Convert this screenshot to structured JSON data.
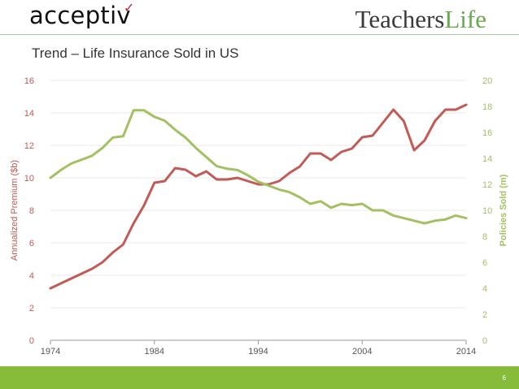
{
  "header": {
    "logo_left": "acceptiv",
    "logo_right_part1": "Teachers",
    "logo_right_part2": "Life",
    "title": "Trend – Life Insurance Sold in US"
  },
  "footer": {
    "page_number": "6"
  },
  "colors": {
    "premium": "#c25a55",
    "policies": "#a3c163",
    "footer": "#86bc3a",
    "grid": "#e8e8e8"
  },
  "chart_data": {
    "type": "line",
    "x_ticks": [
      1974,
      1984,
      1994,
      2004,
      2014
    ],
    "xlim": [
      1974,
      2014
    ],
    "y_left": {
      "label": "Annualized Premium ($b)",
      "ylim": [
        0,
        16
      ],
      "ticks": [
        0,
        2,
        4,
        6,
        8,
        10,
        12,
        14,
        16
      ]
    },
    "y_right": {
      "label": "Policies Sold (m)",
      "ylim": [
        0,
        20
      ],
      "ticks": [
        0,
        2,
        4,
        6,
        8,
        10,
        12,
        14,
        16,
        18,
        20
      ]
    },
    "x": [
      1974,
      1975,
      1976,
      1977,
      1978,
      1979,
      1980,
      1981,
      1982,
      1983,
      1984,
      1985,
      1986,
      1987,
      1988,
      1989,
      1990,
      1991,
      1992,
      1993,
      1994,
      1995,
      1996,
      1997,
      1998,
      1999,
      2000,
      2001,
      2002,
      2003,
      2004,
      2005,
      2006,
      2007,
      2008,
      2009,
      2010,
      2011,
      2012,
      2013,
      2014
    ],
    "series": [
      {
        "name": "Annualized Premium ($b)",
        "axis": "left",
        "values": [
          3.2,
          3.5,
          3.8,
          4.1,
          4.4,
          4.8,
          5.4,
          5.9,
          7.2,
          8.3,
          9.7,
          9.8,
          10.6,
          10.5,
          10.1,
          10.4,
          9.9,
          9.9,
          10.0,
          9.8,
          9.6,
          9.6,
          9.8,
          10.3,
          10.7,
          11.5,
          11.5,
          11.1,
          11.6,
          11.8,
          12.5,
          12.6,
          13.4,
          14.2,
          13.5,
          11.7,
          12.3,
          13.5,
          14.2,
          14.2,
          14.5
        ]
      },
      {
        "name": "Policies Sold (m)",
        "axis": "right",
        "values": [
          12.5,
          13.1,
          13.6,
          13.9,
          14.2,
          14.8,
          15.6,
          15.7,
          17.7,
          17.7,
          17.2,
          16.9,
          16.2,
          15.6,
          14.8,
          14.1,
          13.4,
          13.2,
          13.1,
          12.7,
          12.2,
          11.9,
          11.6,
          11.4,
          11.0,
          10.5,
          10.7,
          10.2,
          10.5,
          10.4,
          10.5,
          10.0,
          10.0,
          9.6,
          9.4,
          9.2,
          9.0,
          9.2,
          9.3,
          9.6,
          9.4
        ]
      }
    ],
    "grid": "horizontal"
  }
}
